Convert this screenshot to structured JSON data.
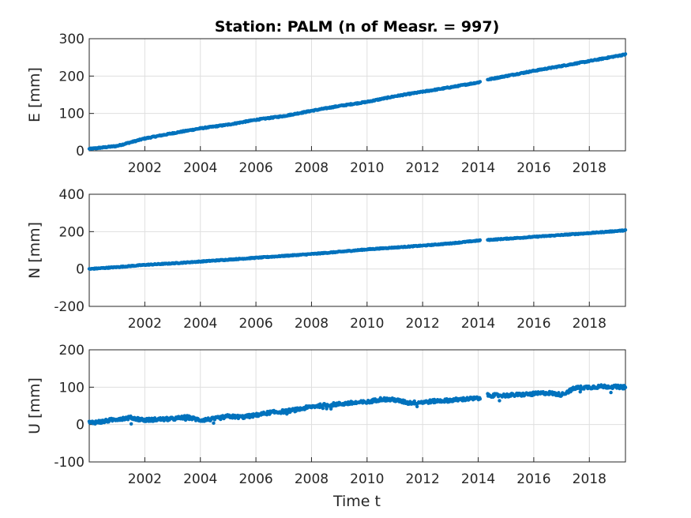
{
  "chart_data": {
    "type": "scatter",
    "title": "Station: PALM (n of Measr. = 997)",
    "xlabel": "Time t",
    "x_range": [
      2000.0,
      2019.3
    ],
    "x_ticks": [
      2002,
      2004,
      2006,
      2008,
      2010,
      2012,
      2014,
      2016,
      2018
    ],
    "x_tick_labels": [
      "2002",
      "2004",
      "2006",
      "2008",
      "2010",
      "2012",
      "2014",
      "2016",
      "2018"
    ],
    "grid": true,
    "marker_color": "#0072BD",
    "n_points": 997,
    "panels": [
      {
        "ylabel": "E [mm]",
        "ylim": [
          0,
          300
        ],
        "y_ticks": [
          0,
          100,
          200,
          300
        ],
        "y_tick_labels": [
          "0",
          "100",
          "200",
          "300"
        ],
        "series": {
          "x": [
            2000.0,
            2001.0,
            2002.0,
            2003.0,
            2004.0,
            2005.0,
            2006.0,
            2007.0,
            2008.0,
            2009.0,
            2010.0,
            2011.0,
            2012.0,
            2013.0,
            2014.0,
            2014.3,
            2015.0,
            2016.0,
            2017.0,
            2018.0,
            2019.3
          ],
          "y": [
            5,
            13,
            33,
            47,
            60,
            70,
            83,
            93,
            107,
            120,
            131,
            146,
            158,
            170,
            183,
            190,
            200,
            214,
            227,
            240,
            258
          ]
        }
      },
      {
        "ylabel": "N [mm]",
        "ylim": [
          -200,
          400
        ],
        "y_ticks": [
          -200,
          0,
          200,
          400
        ],
        "y_tick_labels": [
          "-200",
          "0",
          "200",
          "400"
        ],
        "series": {
          "x": [
            2000.0,
            2001.0,
            2002.0,
            2003.0,
            2004.0,
            2005.0,
            2006.0,
            2007.0,
            2008.0,
            2009.0,
            2010.0,
            2011.0,
            2012.0,
            2013.0,
            2014.0,
            2014.3,
            2015.0,
            2016.0,
            2017.0,
            2018.0,
            2019.3
          ],
          "y": [
            0,
            10,
            22,
            30,
            40,
            50,
            60,
            70,
            80,
            92,
            105,
            115,
            125,
            137,
            152,
            155,
            162,
            172,
            182,
            192,
            207
          ]
        }
      },
      {
        "ylabel": "U [mm]",
        "ylim": [
          -100,
          200
        ],
        "y_ticks": [
          -100,
          0,
          100,
          200
        ],
        "y_tick_labels": [
          "-100",
          "0",
          "100",
          "200"
        ],
        "series": {
          "x": [
            2000.0,
            2000.5,
            2001.0,
            2001.5,
            2002.0,
            2002.5,
            2003.0,
            2003.5,
            2004.0,
            2004.5,
            2005.0,
            2005.5,
            2006.0,
            2006.5,
            2007.0,
            2007.5,
            2008.0,
            2008.5,
            2009.0,
            2009.5,
            2010.0,
            2010.5,
            2011.0,
            2011.5,
            2012.0,
            2012.5,
            2013.0,
            2013.5,
            2014.0,
            2014.3,
            2015.0,
            2015.5,
            2016.0,
            2016.5,
            2017.0,
            2017.5,
            2018.0,
            2018.5,
            2019.3
          ],
          "y": [
            5,
            8,
            15,
            18,
            12,
            14,
            15,
            20,
            12,
            15,
            22,
            20,
            25,
            32,
            35,
            40,
            48,
            52,
            55,
            58,
            60,
            68,
            66,
            58,
            60,
            63,
            65,
            68,
            70,
            78,
            78,
            80,
            82,
            85,
            80,
            98,
            100,
            102,
            100
          ]
        }
      }
    ]
  }
}
